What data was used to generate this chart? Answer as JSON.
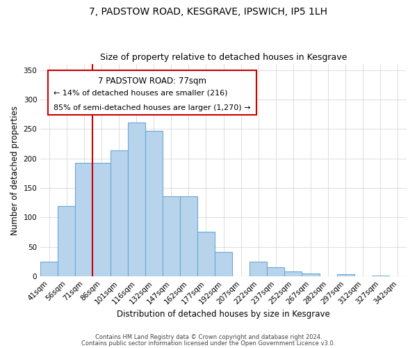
{
  "title": "7, PADSTOW ROAD, KESGRAVE, IPSWICH, IP5 1LH",
  "subtitle": "Size of property relative to detached houses in Kesgrave",
  "xlabel": "Distribution of detached houses by size in Kesgrave",
  "ylabel": "Number of detached properties",
  "bar_labels": [
    "41sqm",
    "56sqm",
    "71sqm",
    "86sqm",
    "101sqm",
    "116sqm",
    "132sqm",
    "147sqm",
    "162sqm",
    "177sqm",
    "192sqm",
    "207sqm",
    "222sqm",
    "237sqm",
    "252sqm",
    "267sqm",
    "282sqm",
    "297sqm",
    "312sqm",
    "327sqm",
    "342sqm"
  ],
  "bar_values": [
    25,
    120,
    193,
    193,
    214,
    261,
    247,
    136,
    136,
    76,
    41,
    0,
    25,
    16,
    8,
    5,
    0,
    4,
    0,
    1,
    0
  ],
  "bar_color": "#b8d4ec",
  "bar_edge_color": "#6aa8d4",
  "vline_x_idx": 3,
  "vline_color": "#cc0000",
  "ylim": [
    0,
    360
  ],
  "yticks": [
    0,
    50,
    100,
    150,
    200,
    250,
    300,
    350
  ],
  "annotation_title": "7 PADSTOW ROAD: 77sqm",
  "annotation_line1": "← 14% of detached houses are smaller (216)",
  "annotation_line2": "85% of semi-detached houses are larger (1,270) →",
  "footer_line1": "Contains HM Land Registry data © Crown copyright and database right 2024.",
  "footer_line2": "Contains public sector information licensed under the Open Government Licence v3.0.",
  "title_fontsize": 10,
  "subtitle_fontsize": 9,
  "axis_label_fontsize": 8.5,
  "tick_fontsize": 7.5,
  "annotation_box_color": "#ffffff",
  "annotation_box_edge": "#cc0000"
}
